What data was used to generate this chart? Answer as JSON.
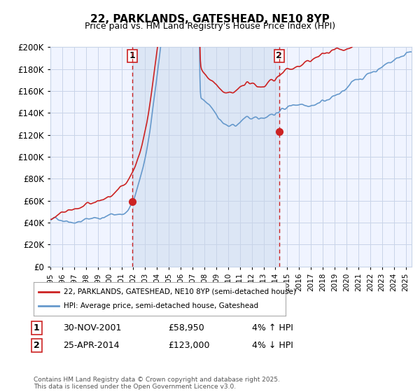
{
  "title": "22, PARKLANDS, GATESHEAD, NE10 8YP",
  "subtitle": "Price paid vs. HM Land Registry's House Price Index (HPI)",
  "legend_line1": "22, PARKLANDS, GATESHEAD, NE10 8YP (semi-detached house)",
  "legend_line2": "HPI: Average price, semi-detached house, Gateshead",
  "annotation1_label": "1",
  "annotation1_date": "30-NOV-2001",
  "annotation1_price": "£58,950",
  "annotation1_hpi": "4% ↑ HPI",
  "annotation2_label": "2",
  "annotation2_date": "25-APR-2014",
  "annotation2_price": "£123,000",
  "annotation2_hpi": "4% ↓ HPI",
  "sale1_year": 2001.917,
  "sale1_value": 58950,
  "sale2_year": 2014.32,
  "sale2_value": 123000,
  "xmin": 1995,
  "xmax": 2025.5,
  "ymin": 0,
  "ymax": 200000,
  "yticks": [
    0,
    20000,
    40000,
    60000,
    80000,
    100000,
    120000,
    140000,
    160000,
    180000,
    200000
  ],
  "ytick_labels": [
    "£0",
    "£20K",
    "£40K",
    "£60K",
    "£80K",
    "£100K",
    "£120K",
    "£140K",
    "£160K",
    "£180K",
    "£200K"
  ],
  "background_color": "#ffffff",
  "plot_bg_color": "#f0f4ff",
  "shaded_region_color": "#dce6f5",
  "grid_color": "#c8d4e8",
  "hpi_line_color": "#6699cc",
  "price_line_color": "#cc2222",
  "vline_color": "#cc2222",
  "dot_color": "#cc2222",
  "copyright_text": "Contains HM Land Registry data © Crown copyright and database right 2025.\nThis data is licensed under the Open Government Licence v3.0.",
  "xtick_years": [
    1995,
    1996,
    1997,
    1998,
    1999,
    2000,
    2001,
    2002,
    2003,
    2004,
    2005,
    2006,
    2007,
    2008,
    2009,
    2010,
    2011,
    2012,
    2013,
    2014,
    2015,
    2016,
    2017,
    2018,
    2019,
    2020,
    2021,
    2022,
    2023,
    2024,
    2025
  ]
}
